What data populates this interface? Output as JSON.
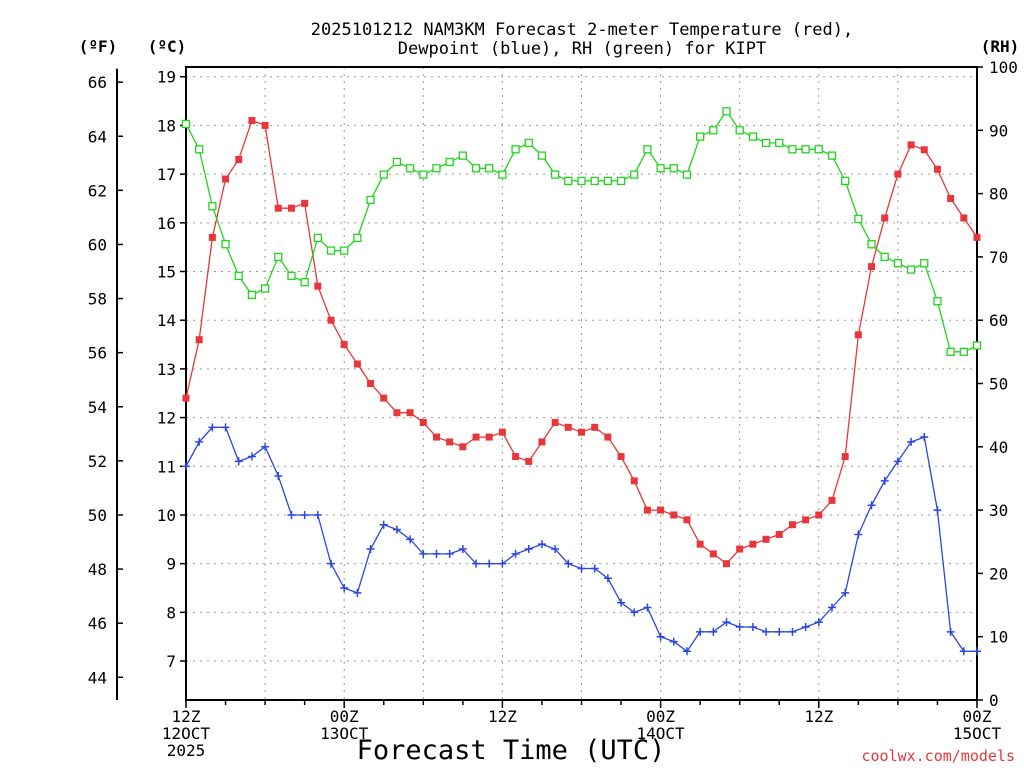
{
  "chart_data": {
    "type": "line",
    "title_line1": "2025101212 NAM3KM Forecast 2-meter Temperature (red),",
    "title_line2": "Dewpoint (blue), RH (green) for KIPT",
    "xlabel": "Forecast Time (UTC)",
    "credit": "coolwx.com/models",
    "units": {
      "fahrenheit": "(ºF)",
      "celsius": "(ºC)",
      "rh": "(RH)"
    },
    "x_ticks": [
      {
        "hour": 0,
        "line1": "12Z",
        "line2": "12OCT",
        "line3": "2025"
      },
      {
        "hour": 12,
        "line1": "00Z",
        "line2": "13OCT",
        "line3": ""
      },
      {
        "hour": 24,
        "line1": "12Z",
        "line2": "",
        "line3": ""
      },
      {
        "hour": 36,
        "line1": "00Z",
        "line2": "14OCT",
        "line3": ""
      },
      {
        "hour": 48,
        "line1": "12Z",
        "line2": "",
        "line3": ""
      },
      {
        "hour": 60,
        "line1": "00Z",
        "line2": "15OCT",
        "line3": ""
      }
    ],
    "xlim": [
      0,
      60
    ],
    "celsius_lim": [
      6.2,
      19.2
    ],
    "rh_lim": [
      0,
      100
    ],
    "celsius_ticks": [
      7,
      8,
      9,
      10,
      11,
      12,
      13,
      14,
      15,
      16,
      17,
      18,
      19
    ],
    "fahrenheit_ticks": [
      44,
      46,
      48,
      50,
      52,
      54,
      56,
      58,
      60,
      62,
      64,
      66
    ],
    "rh_ticks": [
      0,
      10,
      20,
      30,
      40,
      50,
      60,
      70,
      80,
      90,
      100
    ],
    "grid": true,
    "series": [
      {
        "name": "Temperature",
        "color": "#e8363b",
        "marker": "filled-square",
        "axis": "celsius",
        "values": [
          12.4,
          13.6,
          15.7,
          16.9,
          17.3,
          18.1,
          18.0,
          16.3,
          16.3,
          16.4,
          14.7,
          14.0,
          13.5,
          13.1,
          12.7,
          12.4,
          12.1,
          12.1,
          11.9,
          11.6,
          11.5,
          11.4,
          11.6,
          11.6,
          11.7,
          11.2,
          11.1,
          11.5,
          11.9,
          11.8,
          11.7,
          11.8,
          11.6,
          11.2,
          10.7,
          10.1,
          10.1,
          10.0,
          9.9,
          9.4,
          9.2,
          9.0,
          9.3,
          9.4,
          9.5,
          9.6,
          9.8,
          9.9,
          10.0,
          10.3,
          11.2,
          13.7,
          15.1,
          16.1,
          17.0,
          17.6,
          17.5,
          17.1,
          16.5,
          16.1,
          15.7
        ]
      },
      {
        "name": "Dewpoint",
        "color": "#2b47e0",
        "marker": "plus",
        "axis": "celsius",
        "values": [
          11.0,
          11.5,
          11.8,
          11.8,
          11.1,
          11.2,
          11.4,
          10.8,
          10.0,
          10.0,
          10.0,
          9.0,
          8.5,
          8.4,
          9.3,
          9.8,
          9.7,
          9.5,
          9.2,
          9.2,
          9.2,
          9.3,
          9.0,
          9.0,
          9.0,
          9.2,
          9.3,
          9.4,
          9.3,
          9.0,
          8.9,
          8.9,
          8.7,
          8.2,
          8.0,
          8.1,
          7.5,
          7.4,
          7.2,
          7.6,
          7.6,
          7.8,
          7.7,
          7.7,
          7.6,
          7.6,
          7.6,
          7.7,
          7.8,
          8.1,
          8.4,
          9.6,
          10.2,
          10.7,
          11.1,
          11.5,
          11.6,
          10.1,
          7.6,
          7.2,
          7.2
        ]
      },
      {
        "name": "RH",
        "color": "#22d41e",
        "marker": "open-square",
        "axis": "rh",
        "values": [
          91,
          87,
          78,
          72,
          67,
          64,
          65,
          70,
          67,
          66,
          73,
          71,
          71,
          73,
          79,
          83,
          85,
          84,
          83,
          84,
          85,
          86,
          84,
          84,
          83,
          87,
          88,
          86,
          83,
          82,
          82,
          82,
          82,
          82,
          83,
          87,
          84,
          84,
          83,
          89,
          90,
          93,
          90,
          89,
          88,
          88,
          87,
          87,
          87,
          86,
          82,
          76,
          72,
          70,
          69,
          68,
          69,
          63,
          55,
          55,
          56
        ]
      }
    ]
  }
}
